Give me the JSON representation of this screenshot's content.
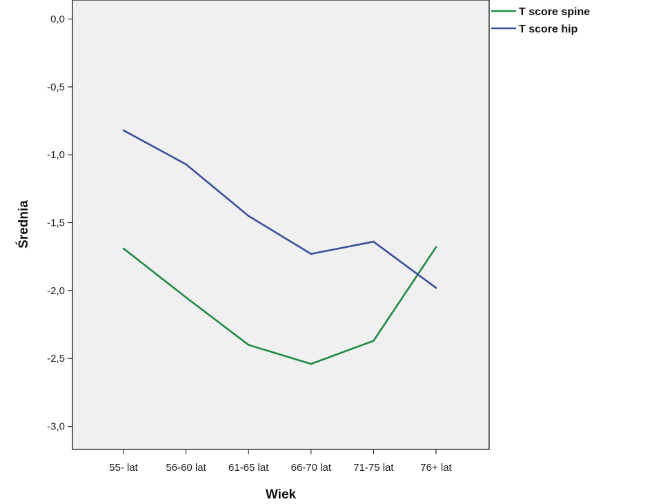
{
  "chart_data": {
    "type": "line",
    "categories": [
      "55- lat",
      "56-60 lat",
      "61-65 lat",
      "66-70 lat",
      "71-75 lat",
      "76+ lat"
    ],
    "series": [
      {
        "name": "T score spine",
        "color": "#1f8a43",
        "values": [
          -1.69,
          -2.05,
          -2.4,
          -2.54,
          -2.37,
          -1.68
        ]
      },
      {
        "name": "T score hip",
        "color": "#3a4f9a",
        "values": [
          -0.82,
          -1.07,
          -1.45,
          -1.73,
          -1.64,
          -1.98
        ]
      }
    ],
    "xlabel": "Wiek",
    "ylabel": "Średnia",
    "ylim": [
      -3.17,
      0.14
    ],
    "yticks": [
      {
        "value": 0.0,
        "label": "0,0"
      },
      {
        "value": -0.5,
        "label": "-0,5"
      },
      {
        "value": -1.0,
        "label": "-1,0"
      },
      {
        "value": -1.5,
        "label": "-1,5"
      },
      {
        "value": -2.0,
        "label": "-2,0"
      },
      {
        "value": -2.5,
        "label": "-2,5"
      },
      {
        "value": -3.0,
        "label": "-3,0"
      }
    ],
    "legend_position": "top-right",
    "plot_background": "#f0f0f0",
    "grid": false
  }
}
